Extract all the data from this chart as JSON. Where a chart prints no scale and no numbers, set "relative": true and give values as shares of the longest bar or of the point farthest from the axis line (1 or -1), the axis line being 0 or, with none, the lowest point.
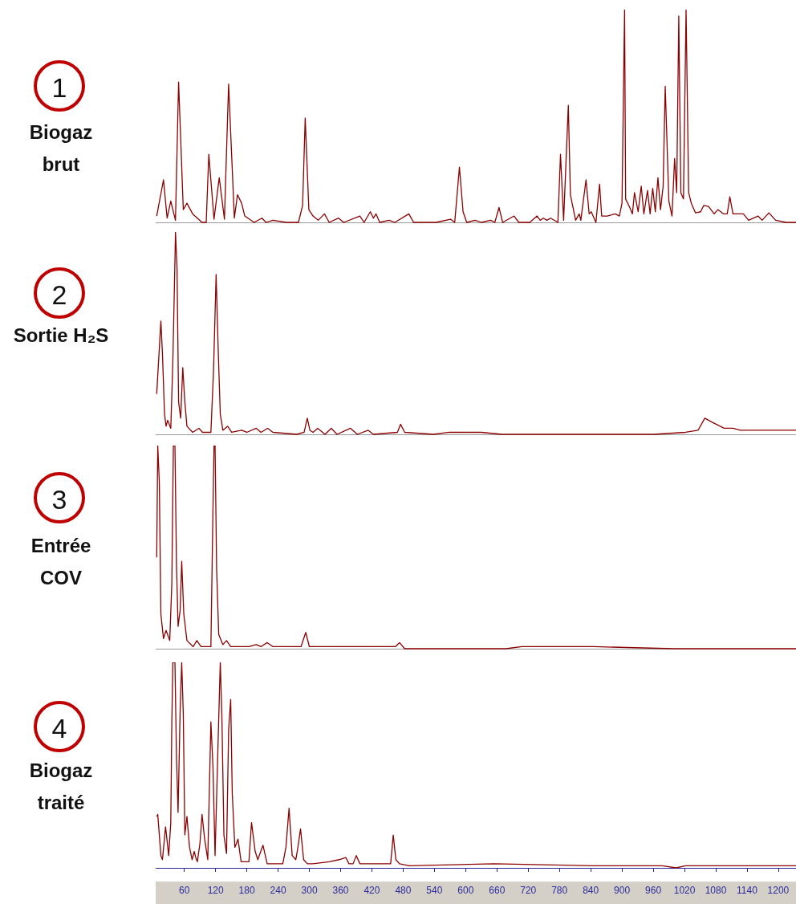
{
  "chart_data": [
    {
      "type": "line",
      "title": "1",
      "subtitle": "Biogaz brut",
      "relative": true,
      "color": "#8b0000",
      "marker": "none",
      "line_style": "solid",
      "grid": false,
      "tick_labels": false,
      "xlim": [
        5,
        1234
      ],
      "x": [
        7,
        20,
        27,
        34,
        43,
        49,
        58,
        65,
        76,
        94,
        102,
        107,
        117,
        127,
        137,
        145,
        156,
        162,
        170,
        176,
        194,
        209,
        217,
        230,
        256,
        279,
        287,
        292,
        299,
        307,
        317,
        329,
        338,
        356,
        366,
        397,
        405,
        417,
        423,
        428,
        435,
        453,
        464,
        491,
        500,
        543,
        571,
        579,
        588,
        595,
        602,
        618,
        630,
        648,
        656,
        664,
        671,
        693,
        702,
        723,
        737,
        743,
        749,
        756,
        763,
        777,
        782,
        788,
        797,
        801,
        806,
        811,
        818,
        821,
        831,
        837,
        841,
        850,
        857,
        861,
        872,
        887,
        895,
        900,
        905,
        907,
        915,
        920,
        924,
        931,
        937,
        942,
        949,
        954,
        959,
        964,
        969,
        974,
        979,
        983,
        990,
        996,
        1001,
        1005,
        1009,
        1013,
        1018,
        1023,
        1028,
        1033,
        1041,
        1051,
        1057,
        1066,
        1077,
        1084,
        1095,
        1102,
        1107,
        1113,
        1133,
        1143,
        1161,
        1169,
        1182,
        1195,
        1215,
        1234
      ],
      "values": [
        0.03,
        0.2,
        0.02,
        0.1,
        0.01,
        0.66,
        0.06,
        0.09,
        0.04,
        0,
        0,
        0.32,
        0.015,
        0.21,
        0.015,
        0.65,
        0.02,
        0.13,
        0.09,
        0.03,
        0,
        0.02,
        0,
        0.01,
        0,
        0,
        0.08,
        0.49,
        0.06,
        0.03,
        0.01,
        0.04,
        0,
        0.02,
        0,
        0.03,
        0,
        0.05,
        0.02,
        0.04,
        0,
        0.01,
        0,
        0.04,
        0,
        0,
        0.015,
        0,
        0.26,
        0.05,
        0,
        0.01,
        0,
        0.01,
        0,
        0.07,
        0,
        0.03,
        0,
        0,
        0.03,
        0.01,
        0.02,
        0.01,
        0.02,
        0,
        0.32,
        0.01,
        0.55,
        0.13,
        0.07,
        0.01,
        0.04,
        0.01,
        0.2,
        0.04,
        0.05,
        0,
        0.18,
        0.03,
        0.03,
        0.04,
        0.03,
        0.09,
        1,
        0.11,
        0.07,
        0.04,
        0.14,
        0.05,
        0.17,
        0.04,
        0.15,
        0.04,
        0.16,
        0.05,
        0.21,
        0.06,
        0.17,
        0.64,
        0.1,
        0.03,
        0.3,
        0.14,
        0.97,
        0.14,
        0.11,
        1,
        0.14,
        0.09,
        0.045,
        0.05,
        0.08,
        0.075,
        0.04,
        0.06,
        0.04,
        0.04,
        0.12,
        0.04,
        0.04,
        0.01,
        0.03,
        0.01,
        0.045,
        0.01,
        0,
        0
      ]
    },
    {
      "type": "line",
      "title": "2",
      "subtitle": "Sortie H₂S",
      "relative": true,
      "color": "#8b0000",
      "marker": "none",
      "line_style": "solid",
      "grid": false,
      "tick_labels": false,
      "xlim": [
        5,
        1234
      ],
      "x": [
        7,
        15,
        18,
        22,
        25,
        28,
        34,
        38,
        42,
        43,
        46,
        49,
        53,
        57,
        61,
        65,
        76,
        88,
        95,
        111,
        116,
        121,
        125,
        129,
        134,
        143,
        151,
        170,
        180,
        198,
        207,
        220,
        230,
        276,
        290,
        296,
        301,
        307,
        316,
        330,
        342,
        353,
        379,
        392,
        413,
        423,
        469,
        475,
        483,
        538,
        569,
        630,
        669,
        692,
        730,
        846,
        961,
        1022,
        1046,
        1059,
        1073,
        1096,
        1113,
        1127,
        1146,
        1206,
        1234
      ],
      "values": [
        0.2,
        0.56,
        0.4,
        0.1,
        0.04,
        0.07,
        0.03,
        0.36,
        0.86,
        1,
        0.82,
        0.16,
        0.08,
        0.33,
        0.16,
        0.04,
        0.01,
        0.03,
        0.01,
        0.01,
        0.31,
        0.79,
        0.42,
        0.1,
        0.02,
        0.04,
        0.01,
        0.02,
        0.01,
        0.03,
        0.01,
        0.03,
        0.01,
        0,
        0.01,
        0.08,
        0.02,
        0.01,
        0.03,
        0,
        0.03,
        0,
        0.03,
        0,
        0.02,
        0,
        0.01,
        0.05,
        0.01,
        0,
        0.01,
        0.01,
        0,
        0,
        0,
        0,
        0,
        0.01,
        0.02,
        0.08,
        0.06,
        0.03,
        0.03,
        0.02,
        0.02,
        0.02,
        0.02
      ]
    },
    {
      "type": "line",
      "title": "3",
      "subtitle": "Entrée COV",
      "relative": true,
      "color": "#8b0000",
      "marker": "none",
      "line_style": "solid",
      "grid": false,
      "tick_labels": false,
      "xlim": [
        5,
        1234
      ],
      "x": [
        7,
        9,
        12,
        15,
        20,
        25,
        32,
        36,
        39,
        42,
        45,
        48,
        52,
        55,
        59,
        65,
        77,
        84,
        92,
        111,
        115,
        117,
        119,
        122,
        126,
        134,
        141,
        149,
        165,
        184,
        198,
        207,
        219,
        230,
        284,
        293,
        300,
        338,
        379,
        415,
        465,
        473,
        483,
        538,
        677,
        708,
        738,
        846,
        1000,
        1206,
        1234
      ],
      "values": [
        0.45,
        1,
        0.82,
        0.17,
        0.05,
        0.09,
        0.04,
        0.32,
        1,
        1,
        0.41,
        0.11,
        0.19,
        0.43,
        0.17,
        0.04,
        0.01,
        0.04,
        0.01,
        0.01,
        0.69,
        1,
        1,
        0.39,
        0.07,
        0.02,
        0.04,
        0.01,
        0.01,
        0.01,
        0.02,
        0.01,
        0.03,
        0.01,
        0.01,
        0.08,
        0.01,
        0.01,
        0.01,
        0.01,
        0.01,
        0.03,
        0,
        0,
        0,
        0.01,
        0.01,
        0.01,
        0,
        0,
        0
      ]
    },
    {
      "type": "line",
      "title": "4",
      "subtitle": "Biogaz traité",
      "relative": true,
      "color": "#8b0000",
      "marker": "none",
      "line_style": "solid",
      "grid": false,
      "tick_labels": "x",
      "xlim": [
        5,
        1234
      ],
      "xticks": [
        60,
        120,
        180,
        240,
        300,
        360,
        420,
        480,
        540,
        600,
        660,
        720,
        780,
        840,
        900,
        960,
        1020,
        1080,
        1140,
        1200
      ],
      "x": [
        7,
        9,
        15,
        18,
        24,
        30,
        34,
        36,
        38,
        42,
        45,
        48,
        52,
        55,
        58,
        61,
        65,
        70,
        75,
        79,
        82,
        85,
        90,
        94,
        99,
        105,
        111,
        115,
        119,
        125,
        129,
        132,
        136,
        141,
        145,
        149,
        152,
        157,
        163,
        169,
        184,
        189,
        196,
        201,
        211,
        219,
        249,
        255,
        261,
        267,
        274,
        278,
        283,
        289,
        296,
        307,
        338,
        357,
        370,
        376,
        384,
        390,
        397,
        456,
        461,
        466,
        473,
        492,
        654,
        846,
        977,
        1004,
        1022,
        1206,
        1234
      ],
      "values": [
        0.25,
        0.26,
        0.06,
        0.04,
        0.2,
        0.06,
        0.22,
        0.71,
        1,
        1,
        0.53,
        0.27,
        0.77,
        1,
        0.75,
        0.16,
        0.25,
        0.1,
        0.04,
        0.08,
        0.05,
        0.03,
        0.12,
        0.26,
        0.14,
        0.04,
        0.71,
        0.49,
        0.06,
        0.63,
        1,
        0.75,
        0.16,
        0.07,
        0.67,
        0.82,
        0.36,
        0.1,
        0.14,
        0.03,
        0.03,
        0.22,
        0.08,
        0.04,
        0.11,
        0.02,
        0.02,
        0.1,
        0.29,
        0.06,
        0.04,
        0.1,
        0.19,
        0.04,
        0.02,
        0.02,
        0.03,
        0.04,
        0.05,
        0.02,
        0.02,
        0.06,
        0.02,
        0.02,
        0.16,
        0.04,
        0.02,
        0.01,
        0.02,
        0.01,
        0.01,
        0,
        0.01,
        0.01,
        0.01
      ]
    }
  ]
}
